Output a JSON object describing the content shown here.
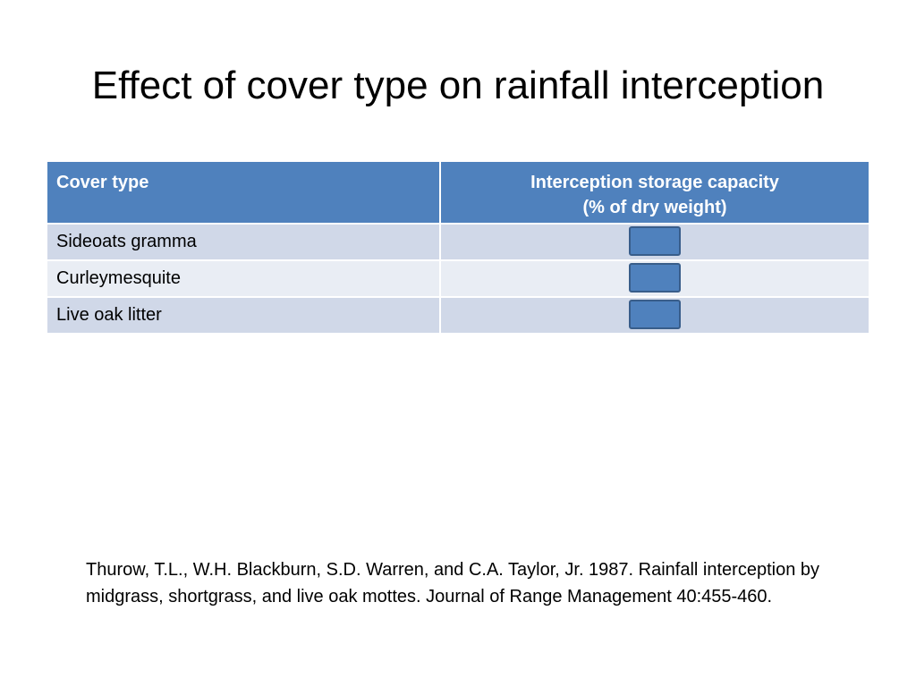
{
  "slide": {
    "title": "Effect of cover type on rainfall interception"
  },
  "table": {
    "headers": {
      "cover_type": "Cover type",
      "capacity_line1": "Interception storage capacity",
      "capacity_line2": "(% of dry weight)"
    },
    "rows": [
      {
        "cover_type": "Sideoats gramma",
        "value": ""
      },
      {
        "cover_type": "Curleymesquite",
        "value": ""
      },
      {
        "cover_type": "Live oak litter",
        "value": ""
      }
    ]
  },
  "citation": {
    "text": "Thurow, T.L., W.H. Blackburn, S.D. Warren, and C.A. Taylor, Jr. 1987. Rainfall interception by midgrass, shortgrass, and live oak mottes. Journal of Range Management 40:455-460."
  },
  "colors": {
    "header_fill": "#4f81bd",
    "row_odd_fill": "#d0d8e8",
    "row_even_fill": "#e9edf4",
    "value_box_fill": "#4f81bd",
    "value_box_border": "#385d8a"
  }
}
